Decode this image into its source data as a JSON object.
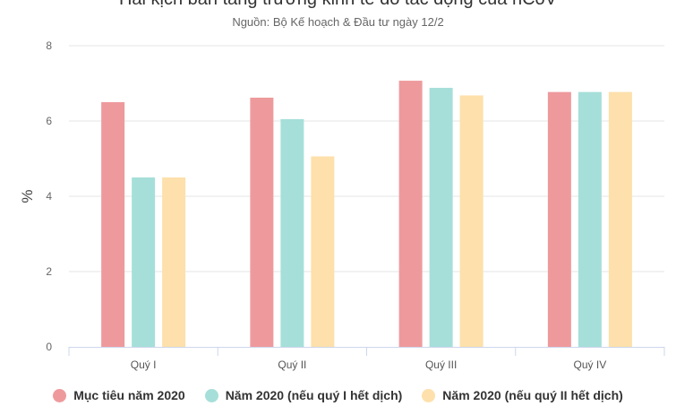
{
  "chart_data": {
    "type": "bar",
    "title": "Hai kịch bản tăng trưởng kinh tế do tác động của nCoV",
    "subtitle": "Nguồn: Bộ Kế hoạch & Đầu tư ngày 12/2",
    "ylabel": "%",
    "ylim": [
      0,
      8
    ],
    "yticks": [
      0,
      2,
      4,
      6,
      8
    ],
    "categories": [
      "Quý I",
      "Quý II",
      "Quý III",
      "Quý IV"
    ],
    "grid": true,
    "legend_position": "bottom",
    "series": [
      {
        "name": "Mục tiêu năm 2020",
        "color": "#ee9a9d",
        "values": [
          6.5,
          6.62,
          7.07,
          6.77
        ]
      },
      {
        "name": "Năm 2020 (nếu quý I hết dịch)",
        "color": "#a6dfd9",
        "values": [
          4.5,
          6.05,
          6.88,
          6.77
        ]
      },
      {
        "name": "Năm 2020 (nếu quý II hết dịch)",
        "color": "#fde0ab",
        "values": [
          4.5,
          5.06,
          6.68,
          6.77
        ]
      }
    ]
  }
}
